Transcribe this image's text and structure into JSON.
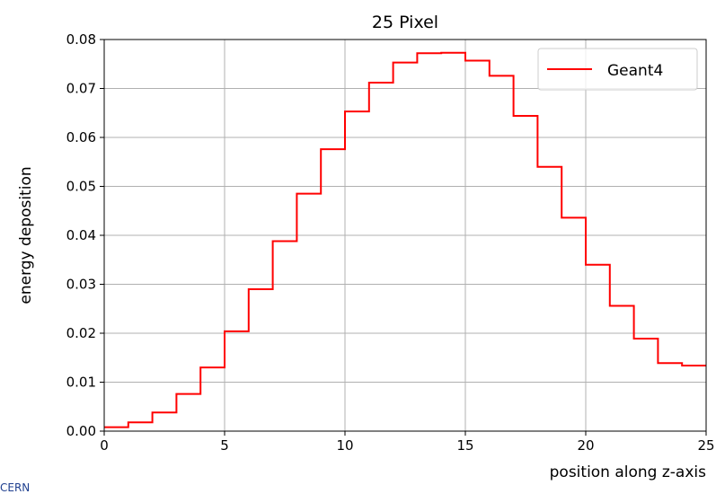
{
  "chart_data": {
    "type": "line",
    "step": "post",
    "title": "25 Pixel",
    "xlabel": "position along z-axis",
    "ylabel": "energy deposition",
    "xlim": [
      0,
      25
    ],
    "ylim": [
      0,
      0.08
    ],
    "xticks": [
      0,
      5,
      10,
      15,
      20,
      25
    ],
    "yticks": [
      0.0,
      0.01,
      0.02,
      0.03,
      0.04,
      0.05,
      0.06,
      0.07,
      0.08
    ],
    "xtick_labels": [
      "0",
      "5",
      "10",
      "15",
      "20",
      "25"
    ],
    "ytick_labels": [
      "0.00",
      "0.01",
      "0.02",
      "0.03",
      "0.04",
      "0.05",
      "0.06",
      "0.07",
      "0.08"
    ],
    "grid": true,
    "legend_position": "top-right",
    "series": [
      {
        "name": "Geant4",
        "color": "#ff0000",
        "x": [
          0,
          1,
          2,
          3,
          4,
          5,
          6,
          7,
          8,
          9,
          10,
          11,
          12,
          13,
          14,
          15,
          16,
          17,
          18,
          19,
          20,
          21,
          22,
          23,
          24
        ],
        "values": [
          0.0008,
          0.0018,
          0.0038,
          0.0076,
          0.013,
          0.0204,
          0.029,
          0.0388,
          0.0485,
          0.0576,
          0.0653,
          0.0712,
          0.0753,
          0.0772,
          0.0773,
          0.0757,
          0.0726,
          0.0644,
          0.054,
          0.0436,
          0.034,
          0.0256,
          0.0189,
          0.0139,
          0.0134
        ]
      }
    ]
  },
  "footer": {
    "corner_text": "CERN"
  }
}
